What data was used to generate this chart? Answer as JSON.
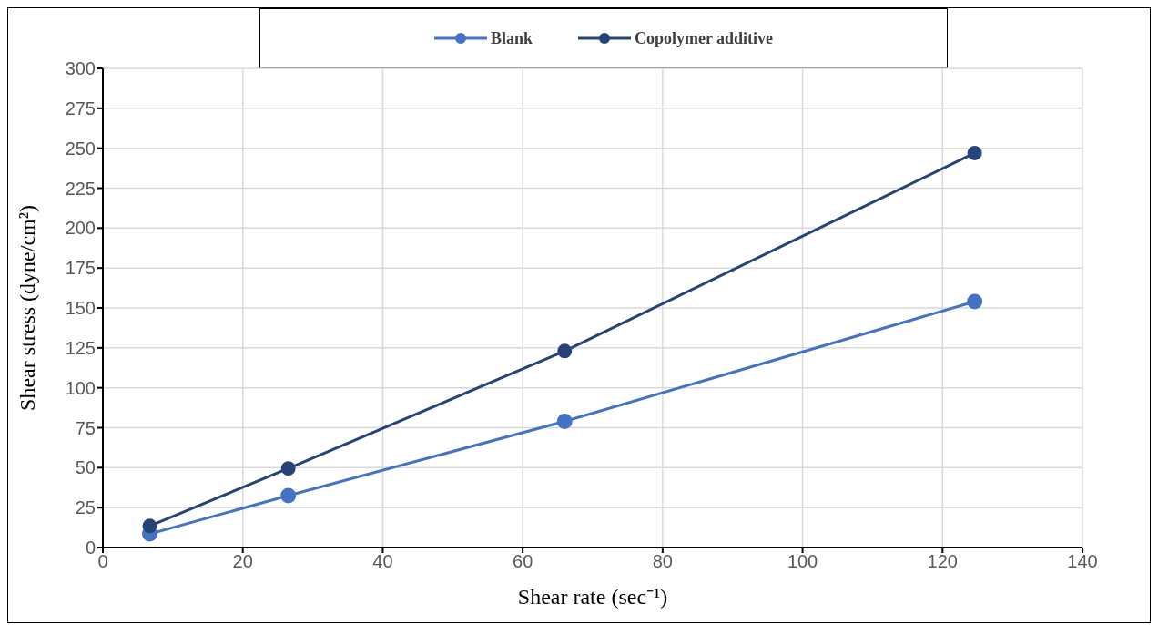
{
  "chart_data": {
    "type": "line",
    "xlabel": "Shear rate (sec⁻¹)",
    "ylabel": "Shear stress (dyne/cm²)",
    "x": [
      6.7,
      26.5,
      66,
      124.6
    ],
    "series": [
      {
        "name": "Blank",
        "color": "#4472c4",
        "values": [
          8.5,
          32.5,
          79,
          154
        ]
      },
      {
        "name": "Copolymer additive",
        "color": "#264478",
        "values": [
          13.5,
          49.5,
          123,
          247
        ]
      }
    ],
    "xlim": [
      0,
      140
    ],
    "xticks": [
      0,
      20,
      40,
      60,
      80,
      100,
      120,
      140
    ],
    "ylim": [
      0,
      300
    ],
    "yticks": [
      0,
      25,
      50,
      75,
      100,
      125,
      150,
      175,
      200,
      225,
      250,
      275,
      300
    ],
    "grid": true,
    "legend": "top",
    "marker": "circle",
    "line_style": "solid"
  }
}
